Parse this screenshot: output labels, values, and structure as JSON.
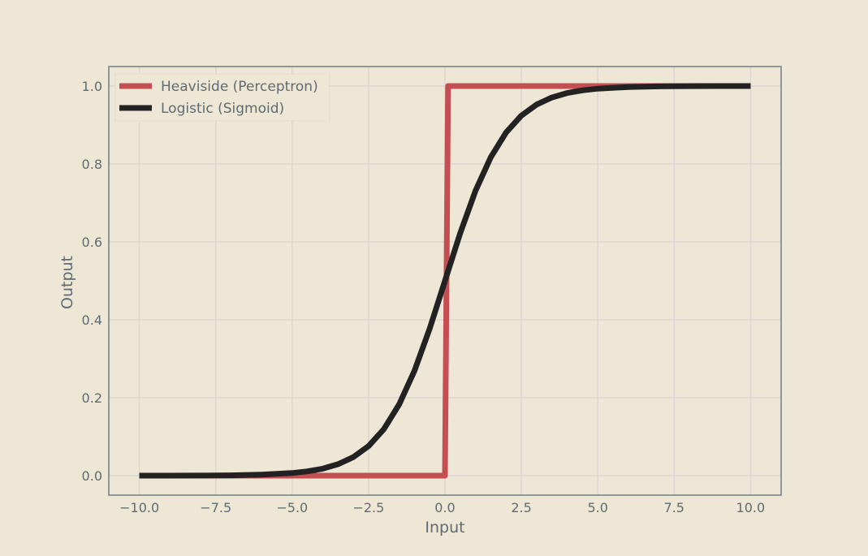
{
  "chart_data": {
    "type": "line",
    "title": "",
    "xlabel": "Input",
    "ylabel": "Output",
    "xlim": [
      -11,
      11
    ],
    "ylim": [
      -0.05,
      1.05
    ],
    "xticks": [
      -10.0,
      -7.5,
      -5.0,
      -2.5,
      0.0,
      2.5,
      5.0,
      7.5,
      10.0
    ],
    "xtick_labels": [
      "−10.0",
      "−7.5",
      "−5.0",
      "−2.5",
      "0.0",
      "2.5",
      "5.0",
      "7.5",
      "10.0"
    ],
    "yticks": [
      0.0,
      0.2,
      0.4,
      0.6,
      0.8,
      1.0
    ],
    "ytick_labels": [
      "0.0",
      "0.2",
      "0.4",
      "0.6",
      "0.8",
      "1.0"
    ],
    "grid": true,
    "legend": "top-left",
    "series": [
      {
        "name": "Heaviside (Perceptron)",
        "color": "#c44e52",
        "x": [
          -10.0,
          0.0,
          0.1,
          10.0
        ],
        "y": [
          0.0,
          0.0,
          1.0,
          1.0
        ]
      },
      {
        "name": "Logistic (Sigmoid)",
        "color": "#222222",
        "x": [
          -10.0,
          -9.0,
          -8.0,
          -7.0,
          -6.0,
          -5.0,
          -4.5,
          -4.0,
          -3.5,
          -3.0,
          -2.5,
          -2.0,
          -1.5,
          -1.0,
          -0.5,
          0.0,
          0.5,
          1.0,
          1.5,
          2.0,
          2.5,
          3.0,
          3.5,
          4.0,
          4.5,
          5.0,
          6.0,
          7.0,
          8.0,
          9.0,
          10.0
        ],
        "y": [
          0.0,
          0.0001,
          0.0003,
          0.0009,
          0.0025,
          0.0067,
          0.011,
          0.018,
          0.0293,
          0.0474,
          0.0759,
          0.1192,
          0.1824,
          0.2689,
          0.3775,
          0.5,
          0.6225,
          0.7311,
          0.8176,
          0.8808,
          0.9241,
          0.9526,
          0.9707,
          0.982,
          0.989,
          0.9933,
          0.9975,
          0.9991,
          0.9997,
          0.9999,
          1.0
        ]
      }
    ]
  },
  "colors": {
    "background": "#efe7d6",
    "grid": "#dcd7d0",
    "frame": "#6e7f85",
    "text": "#5f6b70"
  }
}
